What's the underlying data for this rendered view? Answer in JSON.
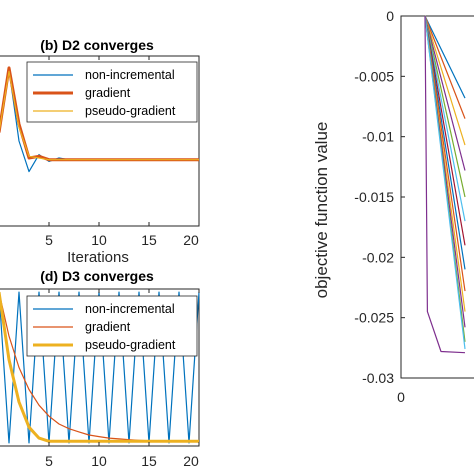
{
  "chart_data": [
    {
      "id": "b",
      "type": "line",
      "title": "(b) D2 converges",
      "xlabel": "Iterations",
      "ylabel": "",
      "xlim": [
        0,
        20
      ],
      "ylim": [
        0,
        1
      ],
      "xticks": [
        "5",
        "10",
        "15",
        "20"
      ],
      "legend_position": "top-right",
      "series": [
        {
          "name": "non-incremental",
          "color": "#0072BD",
          "width": 1.2,
          "x": [
            0,
            1,
            2,
            3,
            4,
            5,
            6,
            7,
            8,
            9,
            10,
            11,
            12,
            13,
            14,
            15,
            16,
            17,
            18,
            19,
            20
          ],
          "y": [
            0.55,
            0.92,
            0.5,
            0.32,
            0.42,
            0.38,
            0.4,
            0.39,
            0.39,
            0.39,
            0.39,
            0.39,
            0.39,
            0.39,
            0.39,
            0.39,
            0.39,
            0.39,
            0.39,
            0.39,
            0.39
          ]
        },
        {
          "name": "gradient",
          "color": "#D95319",
          "width": 3,
          "x": [
            0,
            1,
            2,
            3,
            4,
            5,
            6,
            7,
            8,
            9,
            10,
            11,
            12,
            13,
            14,
            15,
            16,
            17,
            18,
            19,
            20
          ],
          "y": [
            0.55,
            0.93,
            0.6,
            0.4,
            0.41,
            0.39,
            0.39,
            0.39,
            0.39,
            0.39,
            0.39,
            0.39,
            0.39,
            0.39,
            0.39,
            0.39,
            0.39,
            0.39,
            0.39,
            0.39,
            0.39
          ]
        },
        {
          "name": "pseudo-gradient",
          "color": "#EDB120",
          "width": 1.2,
          "x": [
            0,
            1,
            2,
            3,
            4,
            5,
            6,
            7,
            8,
            9,
            10,
            11,
            12,
            13,
            14,
            15,
            16,
            17,
            18,
            19,
            20
          ],
          "y": [
            0.55,
            0.91,
            0.58,
            0.41,
            0.4,
            0.39,
            0.39,
            0.39,
            0.39,
            0.39,
            0.39,
            0.39,
            0.39,
            0.39,
            0.39,
            0.39,
            0.39,
            0.39,
            0.39,
            0.39,
            0.39
          ]
        }
      ]
    },
    {
      "id": "d",
      "type": "line",
      "title": "(d) D3 converges",
      "xlabel": "",
      "ylabel": "",
      "xlim": [
        0,
        20
      ],
      "ylim": [
        0,
        1
      ],
      "xticks": [
        "5",
        "10",
        "15",
        "20"
      ],
      "legend_position": "top-right",
      "series": [
        {
          "name": "non-incremental",
          "color": "#0072BD",
          "width": 1.2,
          "x": [
            0,
            1,
            2,
            3,
            4,
            5,
            6,
            7,
            8,
            9,
            10,
            11,
            12,
            13,
            14,
            15,
            16,
            17,
            18,
            19,
            20
          ],
          "y": [
            0.98,
            0.02,
            0.98,
            0.02,
            0.98,
            0.02,
            0.98,
            0.02,
            0.98,
            0.02,
            0.98,
            0.02,
            0.98,
            0.02,
            0.98,
            0.02,
            0.98,
            0.02,
            0.98,
            0.02,
            0.98
          ]
        },
        {
          "name": "gradient",
          "color": "#D95319",
          "width": 1.2,
          "x": [
            0,
            1,
            2,
            3,
            4,
            5,
            6,
            7,
            8,
            9,
            10,
            11,
            12,
            13,
            14,
            15,
            16,
            17,
            18,
            19,
            20
          ],
          "y": [
            0.98,
            0.7,
            0.5,
            0.36,
            0.26,
            0.19,
            0.14,
            0.11,
            0.09,
            0.07,
            0.06,
            0.05,
            0.045,
            0.04,
            0.036,
            0.034,
            0.032,
            0.031,
            0.03,
            0.03,
            0.03
          ]
        },
        {
          "name": "pseudo-gradient",
          "color": "#EDB120",
          "width": 3,
          "x": [
            0,
            1,
            2,
            3,
            4,
            5,
            6,
            7,
            8,
            9,
            10,
            11,
            12,
            13,
            14,
            15,
            16,
            17,
            18,
            19,
            20
          ],
          "y": [
            0.98,
            0.55,
            0.28,
            0.12,
            0.05,
            0.03,
            0.03,
            0.03,
            0.03,
            0.03,
            0.03,
            0.03,
            0.03,
            0.03,
            0.03,
            0.03,
            0.03,
            0.03,
            0.03,
            0.03,
            0.03
          ]
        }
      ]
    },
    {
      "id": "right",
      "type": "line",
      "title": "",
      "xlabel": "",
      "ylabel": "objective function value",
      "xlim": [
        0,
        1
      ],
      "ylim": [
        -0.03,
        0
      ],
      "yticks": [
        "0",
        "-0.005",
        "-0.01",
        "-0.015",
        "-0.02",
        "-0.025",
        "-0.03"
      ],
      "xticks": [
        "0"
      ],
      "series": [
        {
          "color": "#0072BD",
          "x": [
            0.3,
            0.8
          ],
          "y": [
            0,
            -0.0068
          ]
        },
        {
          "color": "#D95319",
          "x": [
            0.3,
            0.8
          ],
          "y": [
            0,
            -0.0085
          ]
        },
        {
          "color": "#EDB120",
          "x": [
            0.3,
            0.8
          ],
          "y": [
            0,
            -0.0107
          ]
        },
        {
          "color": "#7E2F8E",
          "x": [
            0.3,
            0.8
          ],
          "y": [
            0,
            -0.0128
          ]
        },
        {
          "color": "#77AC30",
          "x": [
            0.3,
            0.8
          ],
          "y": [
            0,
            -0.015
          ]
        },
        {
          "color": "#4DBEEE",
          "x": [
            0.3,
            0.8
          ],
          "y": [
            0,
            -0.017
          ]
        },
        {
          "color": "#A2142F",
          "x": [
            0.3,
            0.8
          ],
          "y": [
            0,
            -0.019
          ]
        },
        {
          "color": "#0072BD",
          "x": [
            0.3,
            0.8
          ],
          "y": [
            0,
            -0.021
          ]
        },
        {
          "color": "#D95319",
          "x": [
            0.3,
            0.8
          ],
          "y": [
            0,
            -0.0228
          ]
        },
        {
          "color": "#EDB120",
          "x": [
            0.3,
            0.8
          ],
          "y": [
            0,
            -0.0245
          ]
        },
        {
          "color": "#7E2F8E",
          "x": [
            0.3,
            0.8
          ],
          "y": [
            0,
            -0.0258
          ]
        },
        {
          "color": "#77AC30",
          "x": [
            0.3,
            0.8
          ],
          "y": [
            0,
            -0.027
          ]
        },
        {
          "color": "#4DBEEE",
          "x": [
            0.3,
            0.8
          ],
          "y": [
            0,
            -0.0276
          ]
        },
        {
          "color": "#7E2F8E",
          "x": [
            0.3,
            0.33,
            0.5,
            0.8
          ],
          "y": [
            0,
            -0.0245,
            -0.0278,
            -0.0279
          ]
        }
      ]
    }
  ]
}
